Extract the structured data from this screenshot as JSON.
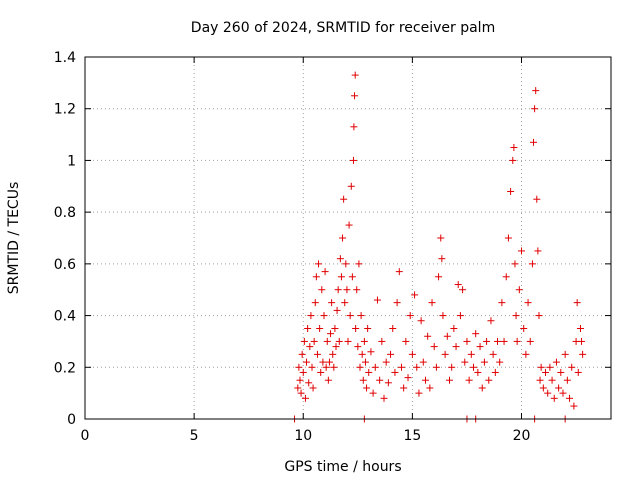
{
  "chart_data": {
    "type": "scatter",
    "title": "Day 260 of 2024, SRMTID for receiver palm",
    "xlabel": "GPS time / hours",
    "ylabel": "SRMTID / TECUs",
    "xlim": [
      0,
      24.1
    ],
    "ylim": [
      0,
      1.4
    ],
    "xticks": [
      0,
      5,
      10,
      15,
      20
    ],
    "yticks": [
      0,
      0.2,
      0.4,
      0.6,
      0.8,
      1,
      1.2,
      1.4
    ],
    "ytick_labels": [
      "0",
      "0.2",
      "0.4",
      "0.6",
      "0.8",
      "1",
      "1.2",
      "1.4"
    ],
    "grid": true,
    "marker": "+",
    "color": "#e00000",
    "series": [
      {
        "name": "SRMTID",
        "points": [
          [
            9.6,
            0.0
          ],
          [
            9.75,
            0.12
          ],
          [
            9.8,
            0.2
          ],
          [
            9.85,
            0.15
          ],
          [
            9.9,
            0.1
          ],
          [
            9.95,
            0.25
          ],
          [
            10.0,
            0.18
          ],
          [
            10.05,
            0.3
          ],
          [
            10.1,
            0.08
          ],
          [
            10.15,
            0.22
          ],
          [
            10.2,
            0.35
          ],
          [
            10.25,
            0.14
          ],
          [
            10.3,
            0.28
          ],
          [
            10.35,
            0.4
          ],
          [
            10.4,
            0.2
          ],
          [
            10.45,
            0.12
          ],
          [
            10.5,
            0.3
          ],
          [
            10.55,
            0.45
          ],
          [
            10.6,
            0.55
          ],
          [
            10.65,
            0.25
          ],
          [
            10.7,
            0.6
          ],
          [
            10.75,
            0.35
          ],
          [
            10.8,
            0.18
          ],
          [
            10.85,
            0.5
          ],
          [
            10.9,
            0.22
          ],
          [
            10.95,
            0.4
          ],
          [
            11.0,
            0.57
          ],
          [
            11.05,
            0.2
          ],
          [
            11.1,
            0.3
          ],
          [
            11.15,
            0.15
          ],
          [
            11.2,
            0.22
          ],
          [
            11.25,
            0.33
          ],
          [
            11.3,
            0.45
          ],
          [
            11.35,
            0.25
          ],
          [
            11.4,
            0.2
          ],
          [
            11.45,
            0.35
          ],
          [
            11.5,
            0.28
          ],
          [
            11.55,
            0.42
          ],
          [
            11.6,
            0.5
          ],
          [
            11.65,
            0.3
          ],
          [
            11.7,
            0.62
          ],
          [
            11.75,
            0.55
          ],
          [
            11.8,
            0.7
          ],
          [
            11.85,
            0.85
          ],
          [
            11.9,
            0.45
          ],
          [
            11.95,
            0.6
          ],
          [
            12.0,
            0.5
          ],
          [
            12.05,
            0.3
          ],
          [
            12.1,
            0.75
          ],
          [
            12.15,
            0.4
          ],
          [
            12.2,
            0.9
          ],
          [
            12.25,
            0.55
          ],
          [
            12.3,
            1.0
          ],
          [
            12.32,
            1.13
          ],
          [
            12.35,
            1.25
          ],
          [
            12.38,
            1.33
          ],
          [
            12.4,
            0.35
          ],
          [
            12.45,
            0.5
          ],
          [
            12.5,
            0.28
          ],
          [
            12.55,
            0.6
          ],
          [
            12.6,
            0.2
          ],
          [
            12.65,
            0.4
          ],
          [
            12.7,
            0.25
          ],
          [
            12.75,
            0.15
          ],
          [
            12.8,
            0.3
          ],
          [
            12.85,
            0.22
          ],
          [
            12.9,
            0.12
          ],
          [
            12.95,
            0.35
          ],
          [
            13.0,
            0.18
          ],
          [
            13.1,
            0.26
          ],
          [
            13.2,
            0.1
          ],
          [
            13.3,
            0.2
          ],
          [
            13.4,
            0.46
          ],
          [
            13.5,
            0.15
          ],
          [
            13.6,
            0.3
          ],
          [
            13.7,
            0.08
          ],
          [
            13.8,
            0.22
          ],
          [
            13.9,
            0.14
          ],
          [
            14.0,
            0.25
          ],
          [
            14.1,
            0.35
          ],
          [
            14.2,
            0.18
          ],
          [
            14.3,
            0.45
          ],
          [
            14.4,
            0.57
          ],
          [
            14.5,
            0.2
          ],
          [
            14.6,
            0.12
          ],
          [
            14.7,
            0.3
          ],
          [
            14.8,
            0.16
          ],
          [
            14.9,
            0.4
          ],
          [
            15.0,
            0.25
          ],
          [
            15.1,
            0.48
          ],
          [
            15.2,
            0.2
          ],
          [
            15.3,
            0.1
          ],
          [
            15.4,
            0.38
          ],
          [
            15.5,
            0.22
          ],
          [
            15.6,
            0.15
          ],
          [
            15.7,
            0.32
          ],
          [
            15.8,
            0.12
          ],
          [
            15.9,
            0.45
          ],
          [
            16.0,
            0.28
          ],
          [
            16.1,
            0.2
          ],
          [
            16.2,
            0.55
          ],
          [
            16.3,
            0.7
          ],
          [
            16.35,
            0.62
          ],
          [
            16.4,
            0.4
          ],
          [
            16.5,
            0.25
          ],
          [
            16.6,
            0.32
          ],
          [
            16.7,
            0.15
          ],
          [
            16.8,
            0.2
          ],
          [
            16.9,
            0.35
          ],
          [
            17.0,
            0.28
          ],
          [
            17.1,
            0.52
          ],
          [
            17.2,
            0.4
          ],
          [
            17.3,
            0.5
          ],
          [
            17.4,
            0.22
          ],
          [
            17.5,
            0.3
          ],
          [
            17.6,
            0.15
          ],
          [
            17.7,
            0.25
          ],
          [
            17.8,
            0.2
          ],
          [
            17.9,
            0.33
          ],
          [
            18.0,
            0.18
          ],
          [
            18.1,
            0.28
          ],
          [
            18.2,
            0.12
          ],
          [
            18.3,
            0.22
          ],
          [
            18.4,
            0.3
          ],
          [
            18.5,
            0.15
          ],
          [
            18.6,
            0.38
          ],
          [
            18.7,
            0.25
          ],
          [
            18.8,
            0.18
          ],
          [
            18.9,
            0.3
          ],
          [
            19.0,
            0.22
          ],
          [
            19.1,
            0.45
          ],
          [
            19.2,
            0.3
          ],
          [
            19.3,
            0.55
          ],
          [
            19.4,
            0.7
          ],
          [
            19.5,
            0.88
          ],
          [
            19.6,
            1.0
          ],
          [
            19.65,
            1.05
          ],
          [
            19.7,
            0.6
          ],
          [
            19.75,
            0.4
          ],
          [
            19.8,
            0.3
          ],
          [
            19.9,
            0.5
          ],
          [
            20.0,
            0.65
          ],
          [
            20.1,
            0.35
          ],
          [
            20.2,
            0.25
          ],
          [
            20.3,
            0.45
          ],
          [
            20.4,
            0.3
          ],
          [
            20.5,
            0.6
          ],
          [
            20.55,
            1.07
          ],
          [
            20.6,
            1.2
          ],
          [
            20.65,
            1.27
          ],
          [
            20.7,
            0.85
          ],
          [
            20.75,
            0.65
          ],
          [
            20.8,
            0.4
          ],
          [
            20.85,
            0.15
          ],
          [
            20.9,
            0.2
          ],
          [
            21.0,
            0.12
          ],
          [
            21.1,
            0.18
          ],
          [
            21.2,
            0.1
          ],
          [
            21.3,
            0.2
          ],
          [
            21.4,
            0.15
          ],
          [
            21.5,
            0.08
          ],
          [
            21.6,
            0.22
          ],
          [
            21.7,
            0.12
          ],
          [
            21.8,
            0.18
          ],
          [
            21.9,
            0.1
          ],
          [
            22.0,
            0.25
          ],
          [
            22.1,
            0.15
          ],
          [
            22.2,
            0.08
          ],
          [
            22.3,
            0.2
          ],
          [
            22.4,
            0.05
          ],
          [
            22.5,
            0.3
          ],
          [
            22.55,
            0.45
          ],
          [
            22.6,
            0.18
          ],
          [
            22.7,
            0.35
          ],
          [
            22.75,
            0.3
          ],
          [
            22.8,
            0.25
          ],
          [
            17.5,
            0.0
          ],
          [
            20.6,
            0.0
          ],
          [
            12.8,
            0.0
          ],
          [
            17.9,
            0.0
          ],
          [
            22.0,
            0.0
          ]
        ]
      }
    ]
  }
}
